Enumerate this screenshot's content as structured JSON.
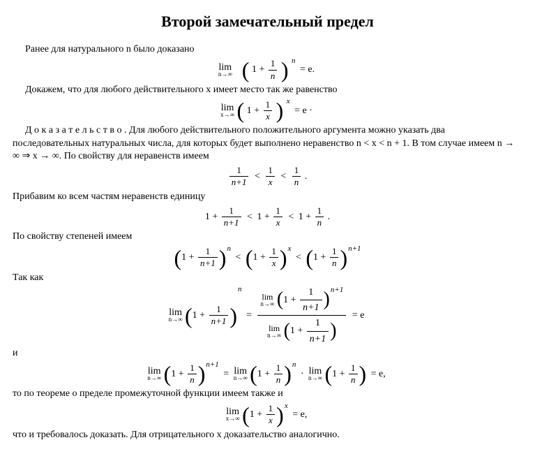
{
  "title": "Второй замечательный предел",
  "p1": "Ранее для натурального n было доказано",
  "p2": "Докажем, что для любого действительного x имеет место так же равенство",
  "proof_label": "Д о к а з а т е л ь с т в о .",
  "p3": " Для любого действительного положительного аргумента можно указать два последовательных натуральных числа, для которых будет выполнено неравенство n < x < n + 1. В том случае имеем n → ∞ ⇒ x → ∞. По свойству для неравенств имеем",
  "p4": "Прибавим ко всем частям неравенств единицу",
  "p5": "По свойству степеней имеем",
  "p6": "Так как",
  "p7": "и",
  "p8": "то по теореме о пределе промежуточной функции имеем также и",
  "p9": "что и требовалось доказать. Для отрицательного x доказательство аналогично.",
  "math": {
    "lim": "lim",
    "sub_ninf": "n→∞",
    "sub_xinf": "x→∞",
    "one": "1",
    "n": "n",
    "x": "x",
    "e": "e",
    "np1": "n+1",
    "eq_e_dot": "= e.",
    "eq_e_space": "= e ·",
    "eq_e": "= e",
    "eq_e_comma": "= e,",
    "plus": "+",
    "one_plus": "1 +",
    "lt": "<",
    "dot": "·",
    "eq": "=",
    "period": "."
  },
  "style": {
    "title_fontsize": 22,
    "body_fontsize": 14,
    "sub_fontsize": 9,
    "sup_fontsize": 11,
    "text_color": "#000000",
    "background_color": "#ffffff",
    "font_family": "Times New Roman"
  }
}
